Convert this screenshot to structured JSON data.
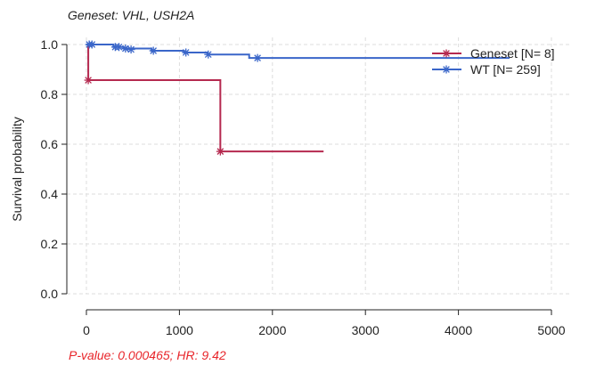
{
  "title": "Geneset: VHL, USH2A",
  "footer": "P-value: 0.000465; HR: 9.42",
  "chart_data": {
    "type": "line",
    "title": "Geneset: VHL, USH2A",
    "xlabel": "",
    "ylabel": "Survival probability",
    "xlim": [
      0,
      5000
    ],
    "ylim": [
      0,
      1
    ],
    "x_ticks": [
      "0",
      "1000",
      "2000",
      "3000",
      "4000",
      "5000"
    ],
    "y_ticks": [
      "0.0",
      "0.2",
      "0.4",
      "0.6",
      "0.8",
      "1.0"
    ],
    "grid": true,
    "legend_position": "top-right",
    "series": [
      {
        "name": "Geneset [N= 8]",
        "color": "#b5294f",
        "steps": [
          [
            0,
            1.0
          ],
          [
            20,
            0.857
          ],
          [
            1440,
            0.571
          ],
          [
            2550,
            0.571
          ]
        ],
        "censored": [
          [
            20,
            0.857
          ],
          [
            1440,
            0.571
          ]
        ]
      },
      {
        "name": "WT [N= 259]",
        "color": "#3a66c9",
        "steps": [
          [
            0,
            1.0
          ],
          [
            290,
            0.99
          ],
          [
            400,
            0.984
          ],
          [
            700,
            0.975
          ],
          [
            1050,
            0.968
          ],
          [
            1300,
            0.96
          ],
          [
            1750,
            0.946
          ],
          [
            4550,
            0.946
          ]
        ],
        "censored": [
          [
            30,
            1.0
          ],
          [
            60,
            1.0
          ],
          [
            310,
            0.99
          ],
          [
            350,
            0.99
          ],
          [
            420,
            0.984
          ],
          [
            480,
            0.98
          ],
          [
            720,
            0.975
          ],
          [
            1070,
            0.968
          ],
          [
            1310,
            0.96
          ],
          [
            1840,
            0.946
          ]
        ]
      }
    ]
  }
}
